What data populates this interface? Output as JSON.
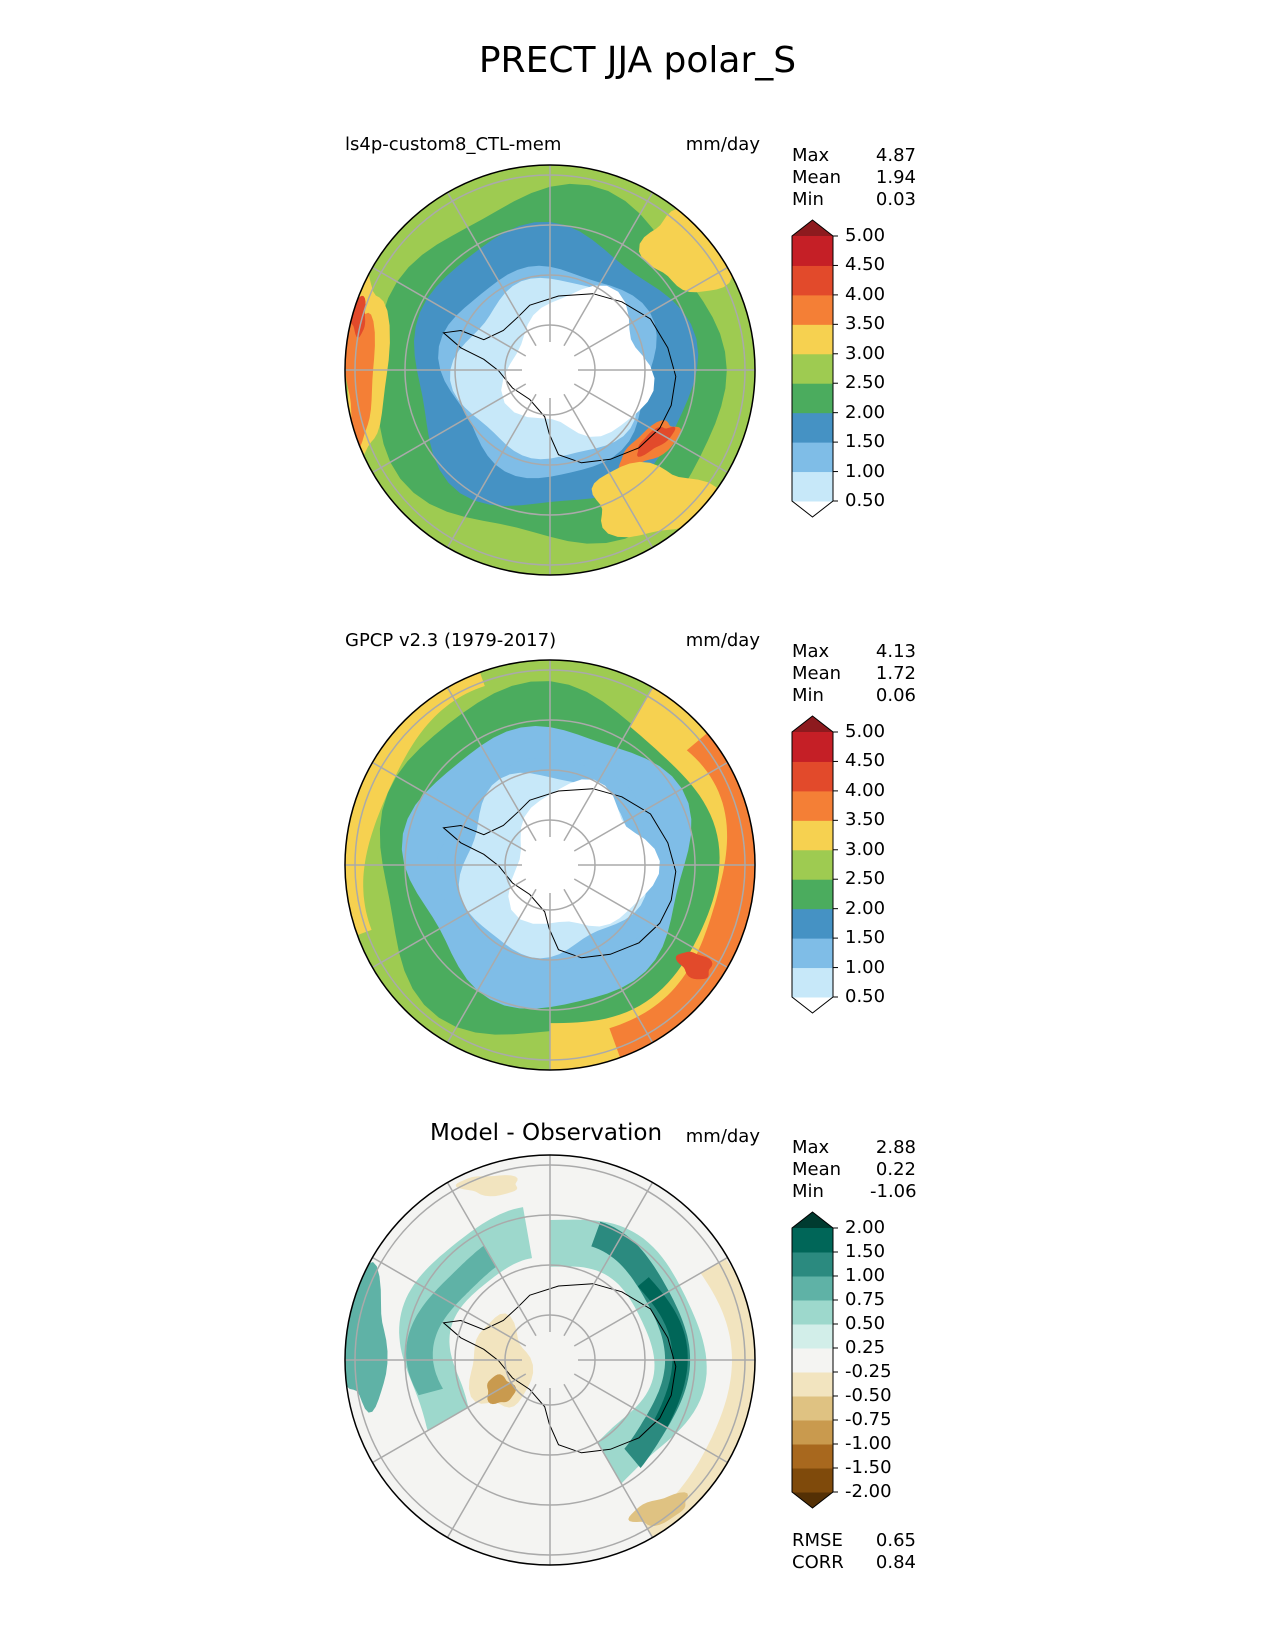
{
  "figure": {
    "title": "PRECT JJA polar_S"
  },
  "panels": [
    {
      "id": "test",
      "title": "ls4p-custom8_CTL-mem",
      "units": "mm/day",
      "stats": [
        {
          "label": "Max",
          "value": "4.87"
        },
        {
          "label": "Mean",
          "value": "1.94"
        },
        {
          "label": "Min",
          "value": "0.03"
        }
      ],
      "colorbar": {
        "levels": [
          "0.50",
          "1.00",
          "1.50",
          "2.00",
          "2.50",
          "3.00",
          "3.50",
          "4.00",
          "4.50",
          "5.00"
        ],
        "colors": [
          "#ffffff",
          "#c7e8f9",
          "#7fbde7",
          "#4592c4",
          "#4bac5e",
          "#9ecb51",
          "#f6d150",
          "#f47f36",
          "#e24a2b",
          "#c51f26",
          "#8d1a1e"
        ]
      }
    },
    {
      "id": "ref",
      "title": "GPCP v2.3 (1979-2017)",
      "units": "mm/day",
      "stats": [
        {
          "label": "Max",
          "value": "4.13"
        },
        {
          "label": "Mean",
          "value": "1.72"
        },
        {
          "label": "Min",
          "value": "0.06"
        }
      ],
      "colorbar": {
        "levels": [
          "0.50",
          "1.00",
          "1.50",
          "2.00",
          "2.50",
          "3.00",
          "3.50",
          "4.00",
          "4.50",
          "5.00"
        ],
        "colors": [
          "#ffffff",
          "#c7e8f9",
          "#7fbde7",
          "#4592c4",
          "#4bac5e",
          "#9ecb51",
          "#f6d150",
          "#f47f36",
          "#e24a2b",
          "#c51f26",
          "#8d1a1e"
        ]
      }
    },
    {
      "id": "diff",
      "title": "Model - Observation",
      "units": "mm/day",
      "stats": [
        {
          "label": "Max",
          "value": "2.88"
        },
        {
          "label": "Mean",
          "value": "0.22"
        },
        {
          "label": "Min",
          "value": "-1.06"
        }
      ],
      "extra_stats": [
        {
          "label": "RMSE",
          "value": "0.65"
        },
        {
          "label": "CORR",
          "value": "0.84"
        }
      ],
      "colorbar": {
        "levels": [
          "-2.00",
          "-1.50",
          "-1.00",
          "-0.75",
          "-0.50",
          "-0.25",
          "0.25",
          "0.50",
          "0.75",
          "1.00",
          "1.50",
          "2.00"
        ],
        "colors": [
          "#543005",
          "#7f4a0b",
          "#a8681e",
          "#c99a4e",
          "#dfc282",
          "#f2e4bf",
          "#f4f4f2",
          "#d2eee9",
          "#9dd8cc",
          "#5fb2a6",
          "#2b8a7f",
          "#006658",
          "#003b30"
        ]
      }
    }
  ]
}
